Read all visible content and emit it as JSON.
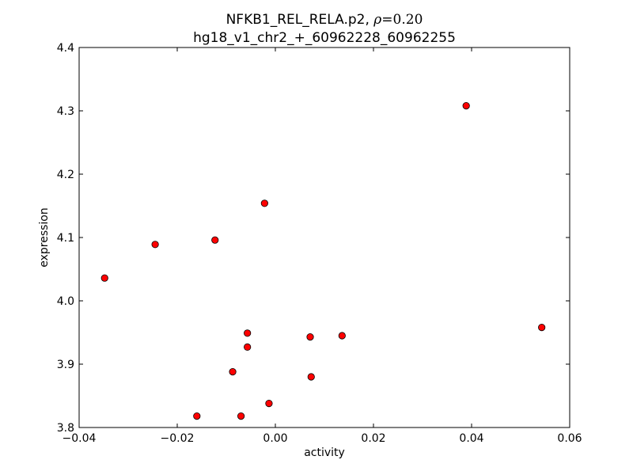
{
  "chart_data": {
    "type": "scatter",
    "title_prefix": "NFKB1_REL_RELA.p2, ",
    "title_rho_symbol": "ρ",
    "title_rho_value": "=0.20",
    "subtitle": "hg18_v1_chr2_+_60962228_60962255",
    "xlabel": "activity",
    "ylabel": "expression",
    "xlim": [
      -0.04,
      0.06
    ],
    "ylim": [
      3.8,
      4.4
    ],
    "xticks": [
      -0.04,
      -0.02,
      0.0,
      0.02,
      0.04,
      0.06
    ],
    "xtick_labels": [
      "−0.04",
      "−0.02",
      "0.00",
      "0.02",
      "0.04",
      "0.06"
    ],
    "yticks": [
      3.8,
      3.9,
      4.0,
      4.1,
      4.2,
      4.3,
      4.4
    ],
    "ytick_labels": [
      "3.8",
      "3.9",
      "4.0",
      "4.1",
      "4.2",
      "4.3",
      "4.4"
    ],
    "grid": false,
    "marker_color": "#ff0000",
    "marker_edge_color": "#000000",
    "points": [
      {
        "x": -0.0348,
        "y": 4.036
      },
      {
        "x": -0.0245,
        "y": 4.089
      },
      {
        "x": -0.0123,
        "y": 4.096
      },
      {
        "x": -0.0022,
        "y": 4.154
      },
      {
        "x": 0.0389,
        "y": 4.308
      },
      {
        "x": 0.0543,
        "y": 3.958
      },
      {
        "x": 0.0136,
        "y": 3.945
      },
      {
        "x": 0.0071,
        "y": 3.943
      },
      {
        "x": -0.0057,
        "y": 3.949
      },
      {
        "x": -0.0057,
        "y": 3.927
      },
      {
        "x": -0.0087,
        "y": 3.888
      },
      {
        "x": 0.0073,
        "y": 3.88
      },
      {
        "x": -0.0013,
        "y": 3.838
      },
      {
        "x": -0.016,
        "y": 3.818
      },
      {
        "x": -0.007,
        "y": 3.818
      }
    ]
  }
}
